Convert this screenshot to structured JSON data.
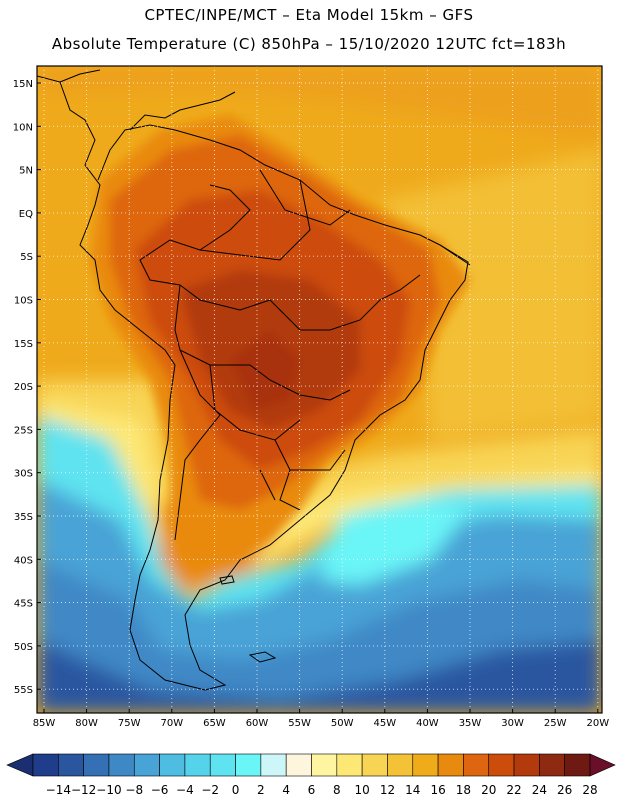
{
  "header": {
    "line1": "CPTEC/INPE/MCT –  Eta Model 15km – GFS",
    "line2": "Absolute Temperature (C) 850hPa – 15/10/2020 12UTC fct=183h"
  },
  "map": {
    "lat_labels": [
      "15N",
      "10N",
      "5N",
      "EQ",
      "5S",
      "10S",
      "15S",
      "20S",
      "25S",
      "30S",
      "35S",
      "40S",
      "45S",
      "50S",
      "55S"
    ],
    "lon_labels": [
      "85W",
      "80W",
      "75W",
      "70W",
      "65W",
      "60W",
      "55W",
      "50W",
      "45W",
      "40W",
      "35W",
      "30W",
      "25W",
      "20W"
    ],
    "region": "South America",
    "variable": "Absolute Temperature (C) 850hPa"
  },
  "colorbar": {
    "labels": [
      "-14",
      "-12",
      "-10",
      "-8",
      "-6",
      "-4",
      "-2",
      "0",
      "2",
      "4",
      "6",
      "8",
      "10",
      "12",
      "14",
      "16",
      "18",
      "20",
      "22",
      "24",
      "26",
      "28"
    ],
    "colors": [
      "#1f3d8a",
      "#2a56a0",
      "#3570b5",
      "#3f88c6",
      "#48a3d6",
      "#4fbde2",
      "#55d3ea",
      "#5fe3f0",
      "#6af5f7",
      "#cdf6f9",
      "#fdf6dc",
      "#fff5a0",
      "#fde876",
      "#f8d454",
      "#f3c236",
      "#f0ab1b",
      "#e98a10",
      "#de6610",
      "#cc4c0c",
      "#b23a0c",
      "#8e2a12",
      "#6e1a12"
    ],
    "under_color": "#1b2f70",
    "over_color": "#6a0f2a"
  }
}
